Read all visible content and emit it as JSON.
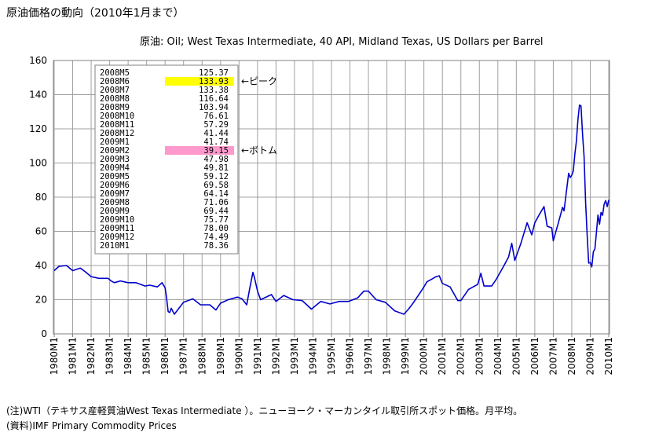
{
  "page": {
    "title": "原油価格の動向（2010年1月まで）",
    "subtitle": "原油: Oil; West Texas Intermediate, 40 API, Midland Texas, US Dollars per Barrel",
    "note": "(注)WTI（テキサス産軽質油West Texas Intermediate ）。ニューヨーク・マーカンタイル取引所スポット価格。月平均。",
    "source": "(資料)IMF Primary Commodity Prices"
  },
  "chart_data": {
    "type": "line",
    "ylim": [
      0,
      160
    ],
    "yticks": [
      "0",
      "20",
      "40",
      "60",
      "80",
      "100",
      "120",
      "140",
      "160"
    ],
    "xtick_labels": [
      "1980M1",
      "1981M1",
      "1982M1",
      "1983M1",
      "1984M1",
      "1985M1",
      "1986M1",
      "1987M1",
      "1988M1",
      "1989M1",
      "1990M1",
      "1991M1",
      "1992M1",
      "1993M1",
      "1994M1",
      "1995M1",
      "1996M1",
      "1997M1",
      "1998M1",
      "1999M1",
      "2000M1",
      "2001M1",
      "2002M1",
      "2003M1",
      "2004M1",
      "2005M1",
      "2006M1",
      "2007M1",
      "2008M1",
      "2009M1",
      "2010M1"
    ],
    "grid": true,
    "line_color": "#0000cc",
    "series_points": [
      [
        "1980-01",
        37
      ],
      [
        "1980-04",
        39.5
      ],
      [
        "1980-09",
        40
      ],
      [
        "1981-01",
        37
      ],
      [
        "1981-06",
        38.5
      ],
      [
        "1981-09",
        36.5
      ],
      [
        "1982-01",
        33.5
      ],
      [
        "1982-06",
        32.5
      ],
      [
        "1982-12",
        32.5
      ],
      [
        "1983-02",
        31
      ],
      [
        "1983-04",
        30
      ],
      [
        "1983-08",
        31
      ],
      [
        "1984-01",
        30
      ],
      [
        "1984-06",
        30
      ],
      [
        "1984-12",
        28
      ],
      [
        "1985-03",
        28.5
      ],
      [
        "1985-08",
        27.5
      ],
      [
        "1985-11",
        30
      ],
      [
        "1986-01",
        27
      ],
      [
        "1986-02",
        21
      ],
      [
        "1986-03",
        13
      ],
      [
        "1986-04",
        12.5
      ],
      [
        "1986-05",
        15
      ],
      [
        "1986-07",
        11.5
      ],
      [
        "1986-10",
        15
      ],
      [
        "1987-01",
        18.5
      ],
      [
        "1987-07",
        20.5
      ],
      [
        "1987-12",
        17
      ],
      [
        "1988-03",
        17
      ],
      [
        "1988-06",
        17
      ],
      [
        "1988-10",
        14
      ],
      [
        "1989-01",
        18
      ],
      [
        "1989-06",
        20
      ],
      [
        "1989-12",
        21.5
      ],
      [
        "1990-03",
        20.5
      ],
      [
        "1990-06",
        17
      ],
      [
        "1990-08",
        27
      ],
      [
        "1990-10",
        36
      ],
      [
        "1990-11",
        33
      ],
      [
        "1991-01",
        25
      ],
      [
        "1991-03",
        20
      ],
      [
        "1991-10",
        23
      ],
      [
        "1992-01",
        19
      ],
      [
        "1992-06",
        22.5
      ],
      [
        "1992-12",
        20
      ],
      [
        "1993-06",
        19.5
      ],
      [
        "1993-12",
        14.5
      ],
      [
        "1994-06",
        19
      ],
      [
        "1994-12",
        17.5
      ],
      [
        "1995-06",
        19
      ],
      [
        "1995-12",
        19
      ],
      [
        "1996-06",
        21
      ],
      [
        "1996-10",
        25
      ],
      [
        "1997-01",
        25
      ],
      [
        "1997-06",
        20
      ],
      [
        "1997-12",
        18.5
      ],
      [
        "1998-06",
        13.5
      ],
      [
        "1998-12",
        11.5
      ],
      [
        "1999-03",
        14.5
      ],
      [
        "1999-06",
        18
      ],
      [
        "1999-12",
        26
      ],
      [
        "2000-03",
        30.5
      ],
      [
        "2000-06",
        32
      ],
      [
        "2000-09",
        33.5
      ],
      [
        "2000-11",
        34
      ],
      [
        "2001-01",
        29.5
      ],
      [
        "2001-06",
        27.5
      ],
      [
        "2001-11",
        19.5
      ],
      [
        "2002-01",
        19.5
      ],
      [
        "2002-06",
        26
      ],
      [
        "2002-12",
        29
      ],
      [
        "2003-02",
        35.5
      ],
      [
        "2003-04",
        28
      ],
      [
        "2003-09",
        28
      ],
      [
        "2003-12",
        32
      ],
      [
        "2004-05",
        40
      ],
      [
        "2004-08",
        45
      ],
      [
        "2004-10",
        53
      ],
      [
        "2004-12",
        43
      ],
      [
        "2005-04",
        53
      ],
      [
        "2005-08",
        65
      ],
      [
        "2005-11",
        58
      ],
      [
        "2006-01",
        65
      ],
      [
        "2006-04",
        70
      ],
      [
        "2006-07",
        74.5
      ],
      [
        "2006-09",
        63
      ],
      [
        "2006-12",
        62
      ],
      [
        "2007-01",
        54.5
      ],
      [
        "2007-04",
        64
      ],
      [
        "2007-07",
        74
      ],
      [
        "2007-08",
        72
      ],
      [
        "2007-11",
        94
      ],
      [
        "2007-12",
        91.5
      ],
      [
        "2008-01",
        92.9
      ],
      [
        "2008-02",
        95.4
      ],
      [
        "2008-03",
        105.4
      ],
      [
        "2008-04",
        112.6
      ],
      [
        "2008-05",
        125.37
      ],
      [
        "2008-06",
        133.93
      ],
      [
        "2008-07",
        133.38
      ],
      [
        "2008-08",
        116.64
      ],
      [
        "2008-09",
        103.94
      ],
      [
        "2008-10",
        76.61
      ],
      [
        "2008-11",
        57.29
      ],
      [
        "2008-12",
        41.44
      ],
      [
        "2009-01",
        41.74
      ],
      [
        "2009-02",
        39.15
      ],
      [
        "2009-03",
        47.98
      ],
      [
        "2009-04",
        49.81
      ],
      [
        "2009-05",
        59.12
      ],
      [
        "2009-06",
        69.58
      ],
      [
        "2009-07",
        64.14
      ],
      [
        "2009-08",
        71.06
      ],
      [
        "2009-09",
        69.44
      ],
      [
        "2009-10",
        75.77
      ],
      [
        "2009-11",
        78.0
      ],
      [
        "2009-12",
        74.49
      ],
      [
        "2010-01",
        78.36
      ]
    ],
    "table": [
      {
        "period": "2008M5",
        "value": "125.37"
      },
      {
        "period": "2008M6",
        "value": "133.93",
        "highlight": "#ffff00"
      },
      {
        "period": "2008M7",
        "value": "133.38"
      },
      {
        "period": "2008M8",
        "value": "116.64"
      },
      {
        "period": "2008M9",
        "value": "103.94"
      },
      {
        "period": "2008M10",
        "value": "76.61"
      },
      {
        "period": "2008M11",
        "value": "57.29"
      },
      {
        "period": "2008M12",
        "value": "41.44"
      },
      {
        "period": "2009M1",
        "value": "41.74"
      },
      {
        "period": "2009M2",
        "value": "39.15",
        "highlight": "#ff99cc"
      },
      {
        "period": "2009M3",
        "value": "47.98"
      },
      {
        "period": "2009M4",
        "value": "49.81"
      },
      {
        "period": "2009M5",
        "value": "59.12"
      },
      {
        "period": "2009M6",
        "value": "69.58"
      },
      {
        "period": "2009M7",
        "value": "64.14"
      },
      {
        "period": "2009M8",
        "value": "71.06"
      },
      {
        "period": "2009M9",
        "value": "69.44"
      },
      {
        "period": "2009M10",
        "value": "75.77"
      },
      {
        "period": "2009M11",
        "value": "78.00"
      },
      {
        "period": "2009M12",
        "value": "74.49"
      },
      {
        "period": "2010M1",
        "value": "78.36"
      }
    ],
    "annotations": {
      "peak": "←ピーク",
      "bottom": "←ボトム"
    }
  }
}
